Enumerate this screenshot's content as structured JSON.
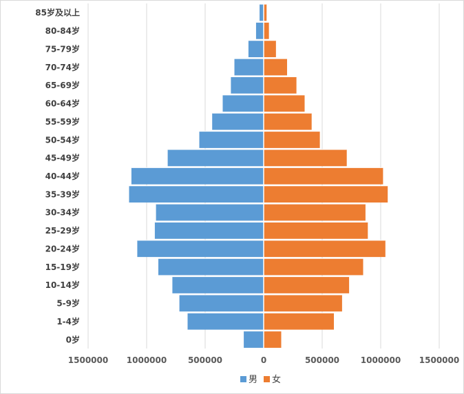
{
  "chart_data": {
    "type": "bar",
    "orientation": "horizontal",
    "categories": [
      "0岁",
      "1-4岁",
      "5-9岁",
      "10-14岁",
      "15-19岁",
      "20-24岁",
      "25-29岁",
      "30-34岁",
      "35-39岁",
      "40-44岁",
      "45-49岁",
      "50-54岁",
      "55-59岁",
      "60-64岁",
      "65-69岁",
      "70-74岁",
      "75-79岁",
      "80-84岁",
      "85岁及以上"
    ],
    "series": [
      {
        "name": "男",
        "color": "#5b9bd5",
        "values": [
          170000,
          650000,
          720000,
          780000,
          900000,
          1080000,
          930000,
          920000,
          1150000,
          1130000,
          820000,
          550000,
          440000,
          350000,
          280000,
          250000,
          130000,
          65000,
          35000
        ]
      },
      {
        "name": "女",
        "color": "#ed7d31",
        "values": [
          150000,
          600000,
          670000,
          730000,
          850000,
          1040000,
          890000,
          870000,
          1060000,
          1020000,
          710000,
          480000,
          410000,
          350000,
          280000,
          200000,
          105000,
          45000,
          25000
        ]
      }
    ],
    "xlim": [
      -1500000,
      1500000
    ],
    "ticks": [
      {
        "value": -1500000,
        "label": "1500000"
      },
      {
        "value": -1000000,
        "label": "1000000"
      },
      {
        "value": -500000,
        "label": "500000"
      },
      {
        "value": 0,
        "label": "0"
      },
      {
        "value": 500000,
        "label": "500000"
      },
      {
        "value": 1000000,
        "label": "1000000"
      },
      {
        "value": 1500000,
        "label": "1500000"
      }
    ],
    "grid": true,
    "legend_position": "bottom"
  }
}
